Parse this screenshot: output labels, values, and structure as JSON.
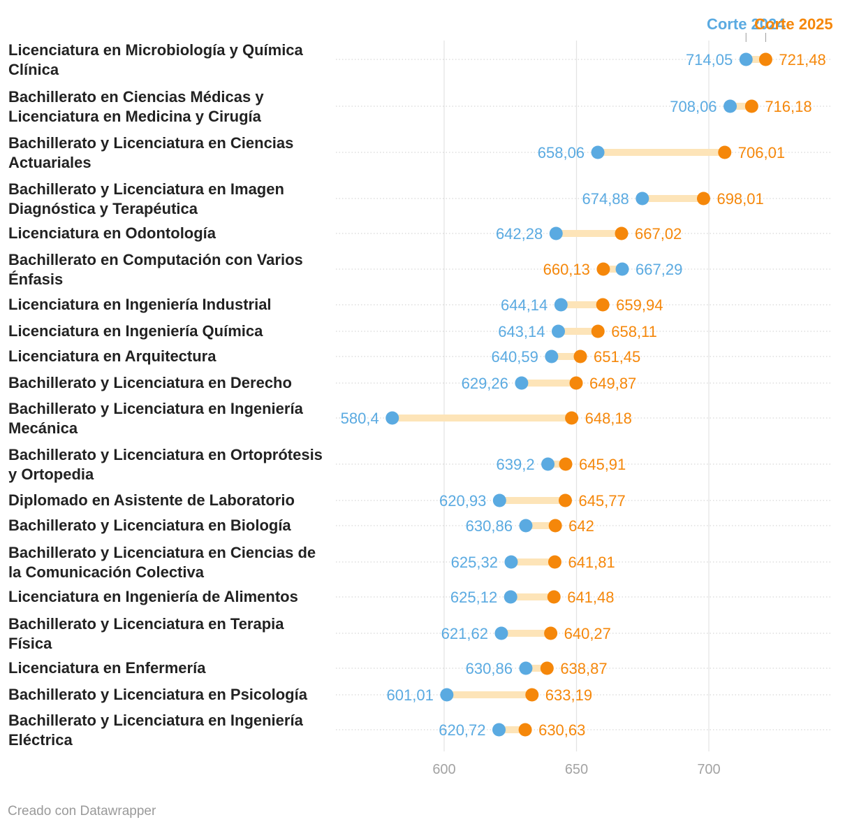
{
  "chart_data": {
    "type": "dot-range",
    "title": "",
    "xlabel": "",
    "ylabel": "",
    "x_ticks": [
      600,
      650,
      700
    ],
    "xlim": [
      563,
      744
    ],
    "series": [
      {
        "name": "Corte 2024",
        "color": "#5aaae1"
      },
      {
        "name": "Corte 2025",
        "color": "#f5870a"
      }
    ],
    "range_color": "#fde4b8",
    "rows": [
      {
        "label_lines": [
          "Licenciatura en Microbiología y Química",
          "Clínica"
        ],
        "v2024": 714.05,
        "v2025": 721.48,
        "t2024": "714,05",
        "t2025": "721,48"
      },
      {
        "label_lines": [
          "Bachillerato en Ciencias Médicas y",
          "Licenciatura en Medicina y Cirugía"
        ],
        "v2024": 708.06,
        "v2025": 716.18,
        "t2024": "708,06",
        "t2025": "716,18"
      },
      {
        "label_lines": [
          "Bachillerato y Licenciatura en Ciencias",
          "Actuariales"
        ],
        "v2024": 658.06,
        "v2025": 706.01,
        "t2024": "658,06",
        "t2025": "706,01"
      },
      {
        "label_lines": [
          "Bachillerato y Licenciatura en Imagen",
          "Diagnóstica y Terapéutica"
        ],
        "v2024": 674.88,
        "v2025": 698.01,
        "t2024": "674,88",
        "t2025": "698,01"
      },
      {
        "label_lines": [
          "Licenciatura en Odontología"
        ],
        "v2024": 642.28,
        "v2025": 667.02,
        "t2024": "642,28",
        "t2025": "667,02"
      },
      {
        "label_lines": [
          "Bachillerato en Computación con Varios",
          "Énfasis"
        ],
        "v2024": 667.29,
        "v2025": 660.13,
        "t2024": "667,29",
        "t2025": "660,13"
      },
      {
        "label_lines": [
          "Licenciatura en Ingeniería Industrial"
        ],
        "v2024": 644.14,
        "v2025": 659.94,
        "t2024": "644,14",
        "t2025": "659,94"
      },
      {
        "label_lines": [
          "Licenciatura en Ingeniería Química"
        ],
        "v2024": 643.14,
        "v2025": 658.11,
        "t2024": "643,14",
        "t2025": "658,11"
      },
      {
        "label_lines": [
          "Licenciatura en Arquitectura"
        ],
        "v2024": 640.59,
        "v2025": 651.45,
        "t2024": "640,59",
        "t2025": "651,45"
      },
      {
        "label_lines": [
          "Bachillerato y Licenciatura en Derecho"
        ],
        "v2024": 629.26,
        "v2025": 649.87,
        "t2024": "629,26",
        "t2025": "649,87"
      },
      {
        "label_lines": [
          "Bachillerato y Licenciatura en Ingeniería",
          "Mecánica"
        ],
        "v2024": 580.4,
        "v2025": 648.18,
        "t2024": "580,4",
        "t2025": "648,18"
      },
      {
        "label_lines": [
          "Bachillerato y Licenciatura en Ortoprótesis",
          "y Ortopedia"
        ],
        "v2024": 639.2,
        "v2025": 645.91,
        "t2024": "639,2",
        "t2025": "645,91"
      },
      {
        "label_lines": [
          "Diplomado en Asistente de Laboratorio"
        ],
        "v2024": 620.93,
        "v2025": 645.77,
        "t2024": "620,93",
        "t2025": "645,77"
      },
      {
        "label_lines": [
          "Bachillerato y Licenciatura en Biología"
        ],
        "v2024": 630.86,
        "v2025": 642,
        "t2024": "630,86",
        "t2025": "642"
      },
      {
        "label_lines": [
          "Bachillerato y Licenciatura en Ciencias de",
          "la Comunicación Colectiva"
        ],
        "v2024": 625.32,
        "v2025": 641.81,
        "t2024": "625,32",
        "t2025": "641,81"
      },
      {
        "label_lines": [
          "Licenciatura en Ingeniería de Alimentos"
        ],
        "v2024": 625.12,
        "v2025": 641.48,
        "t2024": "625,12",
        "t2025": "641,48"
      },
      {
        "label_lines": [
          "Bachillerato y Licenciatura en Terapia",
          "Física"
        ],
        "v2024": 621.62,
        "v2025": 640.27,
        "t2024": "621,62",
        "t2025": "640,27"
      },
      {
        "label_lines": [
          "Licenciatura en Enfermería"
        ],
        "v2024": 630.86,
        "v2025": 638.87,
        "t2024": "630,86",
        "t2025": "638,87"
      },
      {
        "label_lines": [
          "Bachillerato y Licenciatura en Psicología"
        ],
        "v2024": 601.01,
        "v2025": 633.19,
        "t2024": "601,01",
        "t2025": "633,19"
      },
      {
        "label_lines": [
          "Bachillerato y Licenciatura en Ingeniería",
          "Eléctrica"
        ],
        "v2024": 620.72,
        "v2025": 630.63,
        "t2024": "620,72",
        "t2025": "630,63"
      }
    ]
  },
  "footer": {
    "credit": "Creado con Datawrapper"
  }
}
